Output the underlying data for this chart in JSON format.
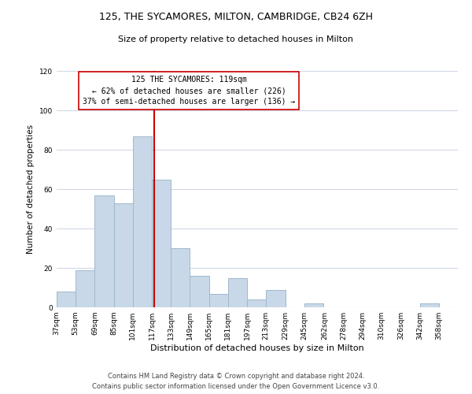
{
  "title": "125, THE SYCAMORES, MILTON, CAMBRIDGE, CB24 6ZH",
  "subtitle": "Size of property relative to detached houses in Milton",
  "xlabel": "Distribution of detached houses by size in Milton",
  "ylabel": "Number of detached properties",
  "footer_line1": "Contains HM Land Registry data © Crown copyright and database right 2024.",
  "footer_line2": "Contains public sector information licensed under the Open Government Licence v3.0.",
  "bin_labels": [
    "37sqm",
    "53sqm",
    "69sqm",
    "85sqm",
    "101sqm",
    "117sqm",
    "133sqm",
    "149sqm",
    "165sqm",
    "181sqm",
    "197sqm",
    "213sqm",
    "229sqm",
    "245sqm",
    "262sqm",
    "278sqm",
    "294sqm",
    "310sqm",
    "326sqm",
    "342sqm",
    "358sqm"
  ],
  "bin_edges": [
    37,
    53,
    69,
    85,
    101,
    117,
    133,
    149,
    165,
    181,
    197,
    213,
    229,
    245,
    262,
    278,
    294,
    310,
    326,
    342,
    358,
    374
  ],
  "bar_heights": [
    8,
    19,
    57,
    53,
    87,
    65,
    30,
    16,
    7,
    15,
    4,
    9,
    0,
    2,
    0,
    0,
    0,
    0,
    0,
    2,
    0
  ],
  "bar_color": "#c8d8e8",
  "bar_edgecolor": "#a0b8cc",
  "property_size": 119,
  "vline_color": "#cc0000",
  "annotation_line1": "125 THE SYCAMORES: 119sqm",
  "annotation_line2": "← 62% of detached houses are smaller (226)",
  "annotation_line3": "37% of semi-detached houses are larger (136) →",
  "annotation_box_color": "#ffffff",
  "annotation_box_edgecolor": "#cc0000",
  "ylim": [
    0,
    120
  ],
  "yticks": [
    0,
    20,
    40,
    60,
    80,
    100,
    120
  ],
  "background_color": "#ffffff",
  "grid_color": "#d0d8e8",
  "title_fontsize": 9,
  "subtitle_fontsize": 8,
  "ylabel_fontsize": 7.5,
  "xlabel_fontsize": 8,
  "tick_fontsize": 6.5,
  "annotation_fontsize": 7,
  "footer_fontsize": 6
}
